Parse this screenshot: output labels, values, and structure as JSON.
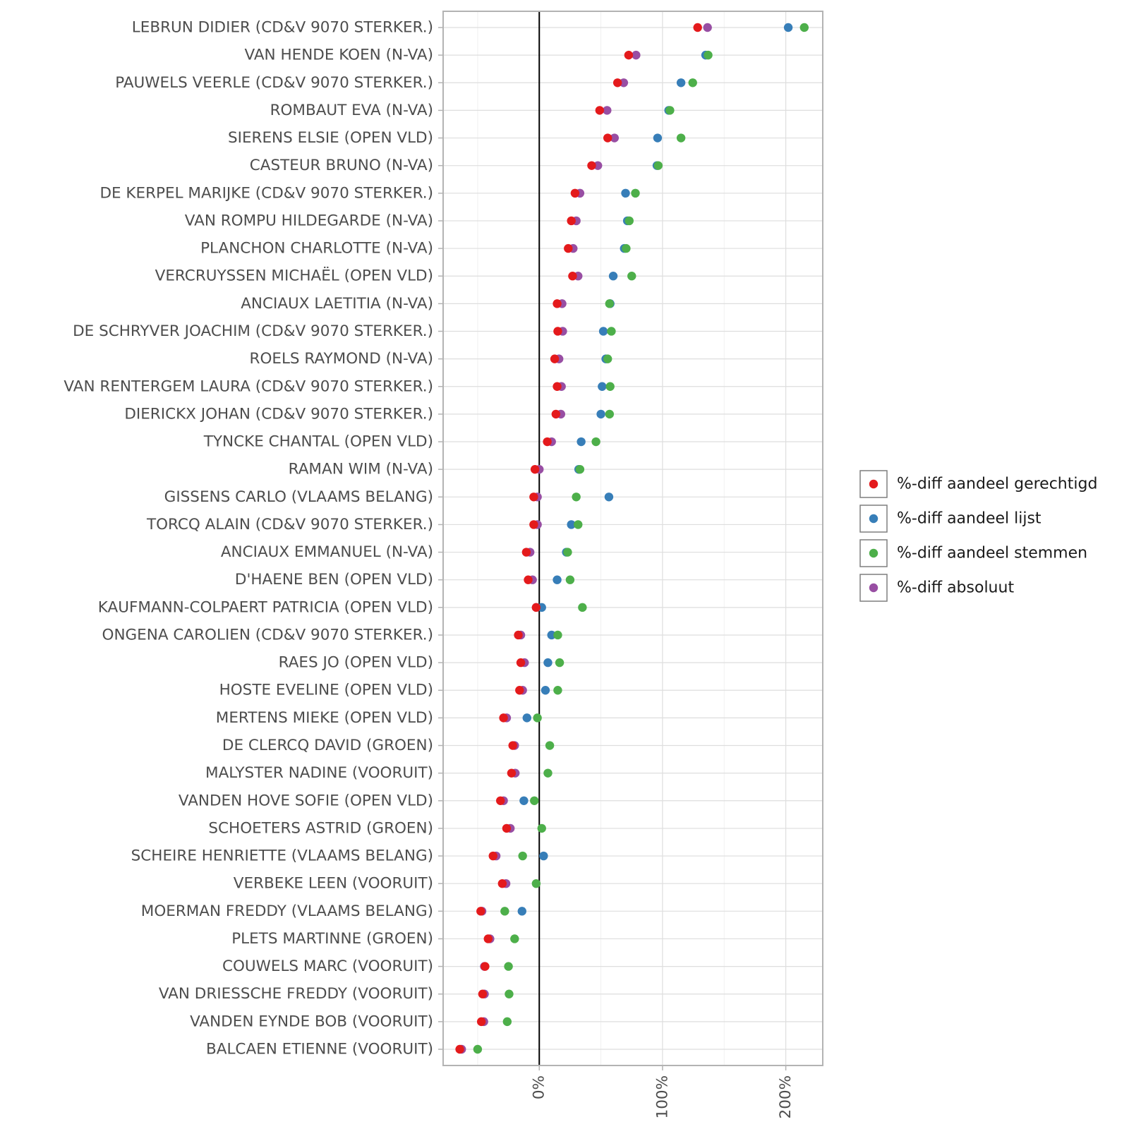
{
  "chart_data": {
    "type": "scatter",
    "title": "",
    "xlabel": "",
    "ylabel": "",
    "xlim": [
      -78,
      230
    ],
    "x_ticks": [
      0,
      100,
      200
    ],
    "x_tick_labels": [
      "0%",
      "100%",
      "200%"
    ],
    "reference_line_x": 0,
    "legend_position": "right",
    "categories": [
      "LEBRUN DIDIER (CD&V 9070 STERKER.)",
      "VAN HENDE KOEN (N-VA)",
      "PAUWELS VEERLE (CD&V 9070 STERKER.)",
      "ROMBAUT EVA (N-VA)",
      "SIERENS ELSIE (OPEN VLD)",
      "CASTEUR BRUNO (N-VA)",
      "DE KERPEL MARIJKE (CD&V 9070 STERKER.)",
      "VAN ROMPU HILDEGARDE (N-VA)",
      "PLANCHON CHARLOTTE (N-VA)",
      "VERCRUYSSEN MICHAËL (OPEN VLD)",
      "ANCIAUX LAETITIA (N-VA)",
      "DE SCHRYVER JOACHIM (CD&V 9070 STERKER.)",
      "ROELS RAYMOND (N-VA)",
      "VAN RENTERGEM LAURA (CD&V 9070 STERKER.)",
      "DIERICKX JOHAN (CD&V 9070 STERKER.)",
      "TYNCKE CHANTAL (OPEN VLD)",
      "RAMAN WIM (N-VA)",
      "GISSENS CARLO (VLAAMS BELANG)",
      "TORCQ ALAIN (CD&V 9070 STERKER.)",
      "ANCIAUX EMMANUEL (N-VA)",
      "D'HAENE BEN (OPEN VLD)",
      "KAUFMANN-COLPAERT PATRICIA (OPEN VLD)",
      "ONGENA CAROLIEN (CD&V 9070 STERKER.)",
      "RAES JO (OPEN VLD)",
      "HOSTE EVELINE (OPEN VLD)",
      "MERTENS MIEKE (OPEN VLD)",
      "DE CLERCQ DAVID (GROEN)",
      "MALYSTER NADINE (VOORUIT)",
      "VANDEN HOVE SOFIE (OPEN VLD)",
      "SCHOETERS ASTRID (GROEN)",
      "SCHEIRE HENRIETTE (VLAAMS BELANG)",
      "VERBEKE LEEN (VOORUIT)",
      "MOERMAN FREDDY (VLAAMS BELANG)",
      "PLETS MARTINNE (GROEN)",
      "COUWELS MARC (VOORUIT)",
      "VAN DRIESSCHE FREDDY (VOORUIT)",
      "VANDEN EYNDE BOB (VOORUIT)",
      "BALCAEN ETIENNE (VOORUIT)"
    ],
    "series": [
      {
        "name": "%-diff absoluut",
        "color": "#984EA3",
        "values": [
          136.5,
          78.5,
          68.5,
          55,
          61,
          47.5,
          33,
          30,
          27.5,
          31.5,
          18.5,
          19,
          16,
          18,
          17.5,
          10,
          0,
          -1.5,
          -1.5,
          -7.5,
          -5.5,
          -2.5,
          -15,
          -12,
          -13.5,
          -26.5,
          -20,
          -19.5,
          -29,
          -23.5,
          -35,
          -27,
          -46.5,
          -40,
          -44.5,
          -44.5,
          -45,
          -63
        ]
      },
      {
        "name": "%-diff aandeel lijst",
        "color": "#377EB8",
        "values": [
          202,
          135,
          115,
          105,
          96,
          95.5,
          70,
          71.5,
          69,
          60,
          57.5,
          52,
          54,
          51,
          50,
          34,
          32,
          56.5,
          26,
          22,
          14.5,
          2,
          10,
          7,
          5,
          -10,
          null,
          null,
          -12.5,
          null,
          3.5,
          null,
          -14,
          null,
          null,
          null,
          null,
          null
        ]
      },
      {
        "name": "%-diff aandeel stemmen",
        "color": "#4DAF4A",
        "values": [
          215,
          137,
          124.5,
          106,
          115,
          96.5,
          78,
          73,
          70.5,
          75,
          57,
          58.5,
          55.5,
          57.5,
          57,
          46,
          33,
          30,
          31.5,
          23,
          25,
          35,
          15,
          16.5,
          15,
          -1.5,
          8.5,
          7,
          -4,
          2,
          -13.5,
          -2.5,
          -28,
          -20,
          -25,
          -24.5,
          -26,
          -50
        ]
      },
      {
        "name": "%-diff aandeel gerechtigd",
        "color": "#E41A1C",
        "values": [
          128.5,
          72.5,
          63.5,
          49,
          55.5,
          42.5,
          29,
          26,
          23.5,
          27,
          14.5,
          15,
          12.5,
          14.5,
          13.5,
          6.5,
          -3.5,
          -4.5,
          -4.5,
          -10.5,
          -9,
          -2.5,
          -17,
          -15,
          -16,
          -29,
          -21.5,
          -22.5,
          -31.5,
          -26.5,
          -37.5,
          -30,
          -47.5,
          -41.5,
          -44,
          -46,
          -47,
          -64.5
        ]
      }
    ],
    "legend": [
      {
        "label": "%-diff aandeel gerechtigd",
        "color": "#E41A1C"
      },
      {
        "label": "%-diff aandeel lijst",
        "color": "#377EB8"
      },
      {
        "label": "%-diff aandeel stemmen",
        "color": "#4DAF4A"
      },
      {
        "label": "%-diff absoluut",
        "color": "#984EA3"
      }
    ]
  }
}
